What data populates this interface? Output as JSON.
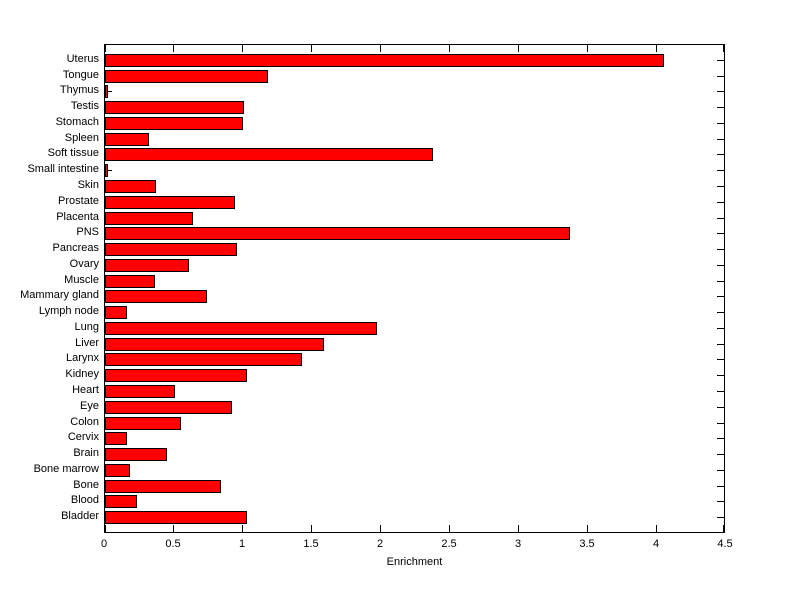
{
  "chart_data": {
    "type": "bar",
    "orientation": "horizontal",
    "title": "",
    "xlabel": "Enrichment",
    "ylabel": "",
    "xlim": [
      0,
      4.5
    ],
    "xticks": [
      0,
      0.5,
      1,
      1.5,
      2,
      2.5,
      3,
      3.5,
      4,
      4.5
    ],
    "xtick_labels": [
      "0",
      "0.5",
      "1",
      "1.5",
      "2",
      "2.5",
      "3",
      "3.5",
      "4",
      "4.5"
    ],
    "grid": false,
    "legend": null,
    "bar_color": "#FF0000",
    "bar_edge_color": "#000000",
    "axis_color": "#000000",
    "background_color": "#FFFFFF",
    "categories_top_to_bottom": [
      "Uterus",
      "Tongue",
      "Thymus",
      "Testis",
      "Stomach",
      "Spleen",
      "Soft tissue",
      "Small intestine",
      "Skin",
      "Prostate",
      "Placenta",
      "PNS",
      "Pancreas",
      "Ovary",
      "Muscle",
      "Mammary gland",
      "Lymph node",
      "Lung",
      "Liver",
      "Larynx",
      "Kidney",
      "Heart",
      "Eye",
      "Colon",
      "Cervix",
      "Brain",
      "Bone marrow",
      "Bone",
      "Blood",
      "Bladder"
    ],
    "values": [
      4.05,
      1.18,
      0.02,
      1.01,
      1.0,
      0.32,
      2.38,
      0.02,
      0.37,
      0.94,
      0.64,
      3.37,
      0.96,
      0.61,
      0.36,
      0.74,
      0.16,
      1.97,
      1.59,
      1.43,
      1.03,
      0.51,
      0.92,
      0.55,
      0.16,
      0.45,
      0.18,
      0.84,
      0.23,
      1.03
    ]
  }
}
